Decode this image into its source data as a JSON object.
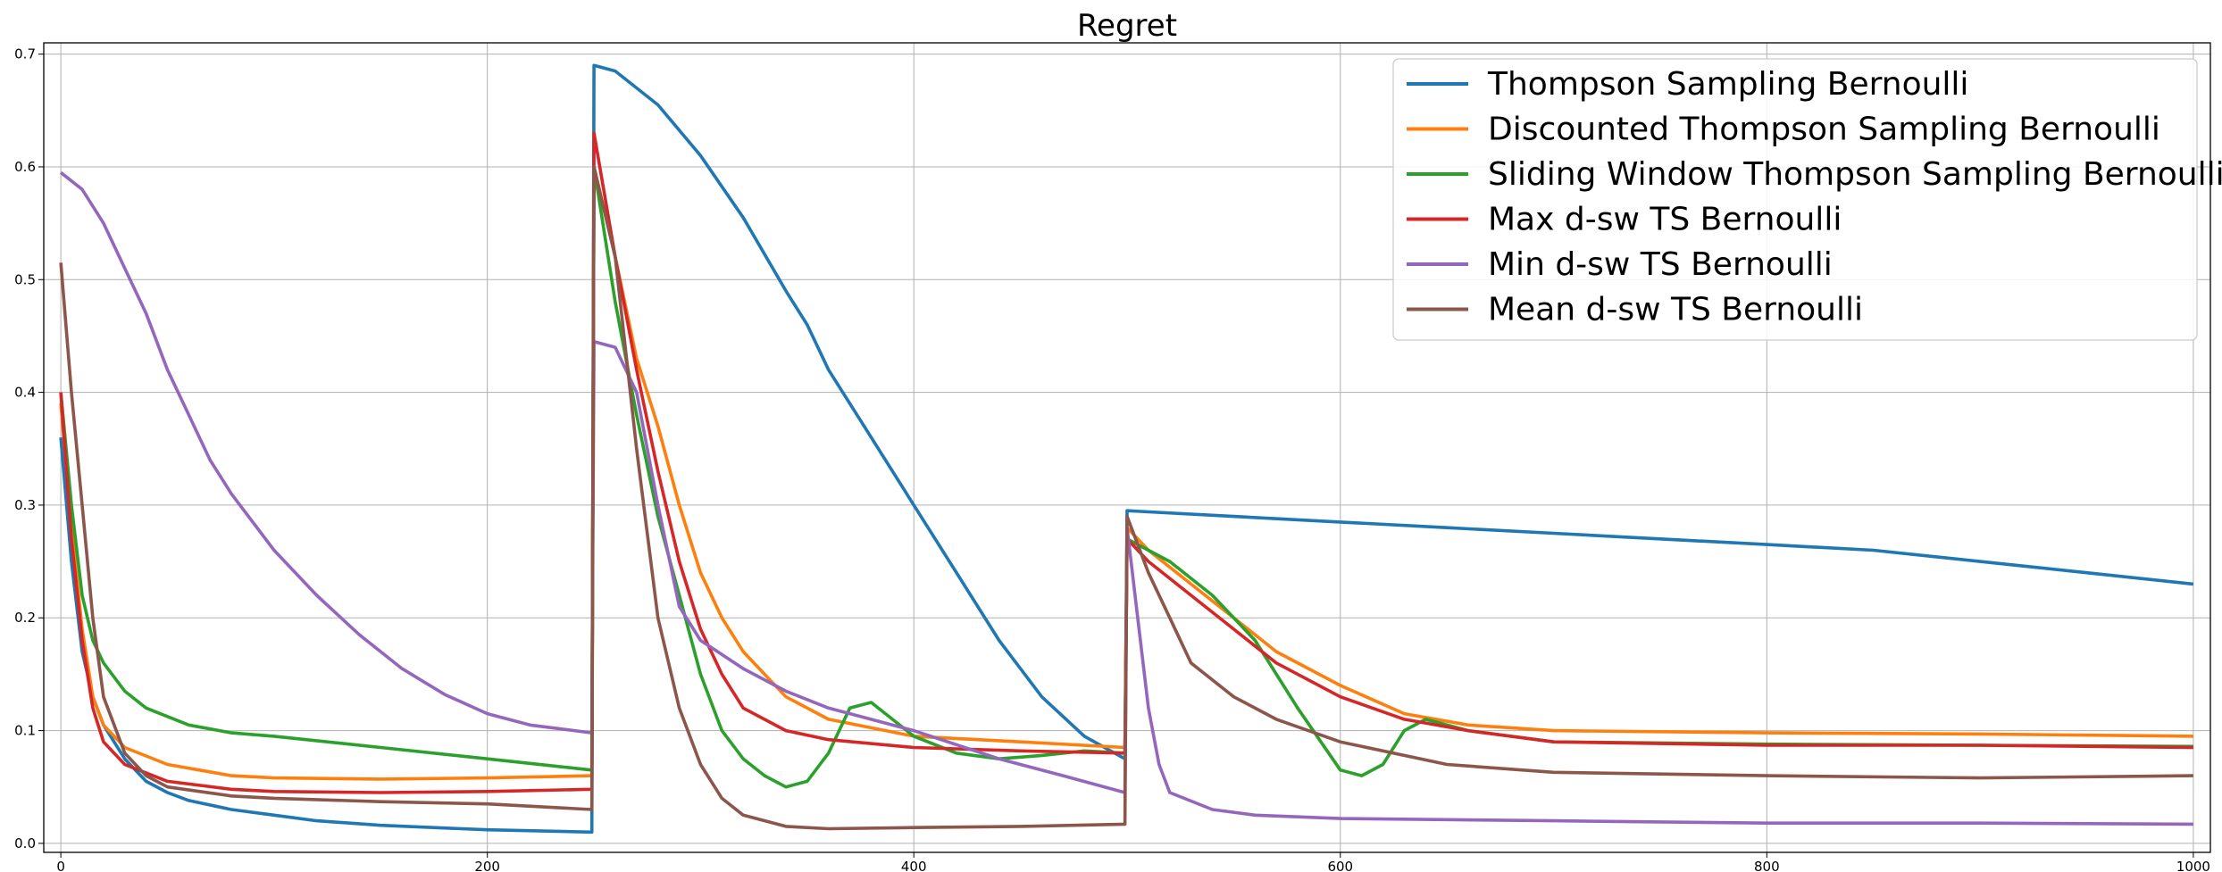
{
  "chart_data": {
    "type": "line",
    "title": "Regret",
    "xlabel": "",
    "ylabel": "",
    "xlim": [
      -8,
      1008
    ],
    "ylim": [
      -0.008,
      0.71
    ],
    "x_ticks": [
      0,
      200,
      400,
      600,
      800,
      1000
    ],
    "y_ticks": [
      0.0,
      0.1,
      0.2,
      0.3,
      0.4,
      0.5,
      0.6,
      0.7
    ],
    "x_tick_labels": [
      "0",
      "200",
      "400",
      "600",
      "800",
      "1000"
    ],
    "y_tick_labels": [
      "0.0",
      "0.1",
      "0.2",
      "0.3",
      "0.4",
      "0.5",
      "0.6",
      "0.7"
    ],
    "grid": true,
    "legend_position": "top-right",
    "series": [
      {
        "name": "Thompson Sampling Bernoulli",
        "color": "#1f77b4",
        "points": [
          [
            0,
            0.36
          ],
          [
            5,
            0.25
          ],
          [
            10,
            0.17
          ],
          [
            15,
            0.13
          ],
          [
            20,
            0.105
          ],
          [
            30,
            0.075
          ],
          [
            40,
            0.055
          ],
          [
            50,
            0.045
          ],
          [
            60,
            0.038
          ],
          [
            80,
            0.03
          ],
          [
            100,
            0.025
          ],
          [
            120,
            0.02
          ],
          [
            150,
            0.016
          ],
          [
            200,
            0.012
          ],
          [
            249,
            0.01
          ],
          [
            250,
            0.69
          ],
          [
            260,
            0.685
          ],
          [
            280,
            0.655
          ],
          [
            300,
            0.61
          ],
          [
            320,
            0.555
          ],
          [
            340,
            0.49
          ],
          [
            350,
            0.46
          ],
          [
            360,
            0.42
          ],
          [
            380,
            0.36
          ],
          [
            400,
            0.3
          ],
          [
            420,
            0.24
          ],
          [
            440,
            0.18
          ],
          [
            460,
            0.13
          ],
          [
            480,
            0.095
          ],
          [
            499,
            0.075
          ],
          [
            500,
            0.295
          ],
          [
            550,
            0.29
          ],
          [
            600,
            0.285
          ],
          [
            650,
            0.28
          ],
          [
            700,
            0.275
          ],
          [
            750,
            0.27
          ],
          [
            800,
            0.265
          ],
          [
            850,
            0.26
          ],
          [
            900,
            0.25
          ],
          [
            950,
            0.24
          ],
          [
            1000,
            0.23
          ]
        ]
      },
      {
        "name": "Discounted Thompson Sampling Bernoulli",
        "color": "#ff7f0e",
        "points": [
          [
            0,
            0.39
          ],
          [
            5,
            0.28
          ],
          [
            10,
            0.19
          ],
          [
            15,
            0.13
          ],
          [
            20,
            0.105
          ],
          [
            30,
            0.085
          ],
          [
            50,
            0.07
          ],
          [
            80,
            0.06
          ],
          [
            100,
            0.058
          ],
          [
            150,
            0.057
          ],
          [
            200,
            0.058
          ],
          [
            249,
            0.06
          ],
          [
            250,
            0.6
          ],
          [
            260,
            0.52
          ],
          [
            270,
            0.43
          ],
          [
            280,
            0.37
          ],
          [
            290,
            0.3
          ],
          [
            300,
            0.24
          ],
          [
            310,
            0.2
          ],
          [
            320,
            0.17
          ],
          [
            340,
            0.13
          ],
          [
            360,
            0.11
          ],
          [
            400,
            0.095
          ],
          [
            450,
            0.09
          ],
          [
            499,
            0.085
          ],
          [
            500,
            0.28
          ],
          [
            510,
            0.26
          ],
          [
            530,
            0.23
          ],
          [
            550,
            0.2
          ],
          [
            570,
            0.17
          ],
          [
            600,
            0.14
          ],
          [
            630,
            0.115
          ],
          [
            660,
            0.105
          ],
          [
            700,
            0.1
          ],
          [
            800,
            0.098
          ],
          [
            900,
            0.097
          ],
          [
            1000,
            0.095
          ]
        ]
      },
      {
        "name": "Sliding Window Thompson Sampling Bernoulli",
        "color": "#2ca02c",
        "points": [
          [
            0,
            0.4
          ],
          [
            5,
            0.3
          ],
          [
            10,
            0.22
          ],
          [
            15,
            0.18
          ],
          [
            20,
            0.16
          ],
          [
            30,
            0.135
          ],
          [
            40,
            0.12
          ],
          [
            60,
            0.105
          ],
          [
            80,
            0.098
          ],
          [
            100,
            0.095
          ],
          [
            150,
            0.085
          ],
          [
            200,
            0.075
          ],
          [
            249,
            0.065
          ],
          [
            250,
            0.6
          ],
          [
            260,
            0.48
          ],
          [
            270,
            0.38
          ],
          [
            280,
            0.29
          ],
          [
            290,
            0.22
          ],
          [
            300,
            0.15
          ],
          [
            310,
            0.1
          ],
          [
            320,
            0.075
          ],
          [
            330,
            0.06
          ],
          [
            340,
            0.05
          ],
          [
            350,
            0.055
          ],
          [
            360,
            0.08
          ],
          [
            370,
            0.12
          ],
          [
            380,
            0.125
          ],
          [
            390,
            0.11
          ],
          [
            400,
            0.095
          ],
          [
            420,
            0.08
          ],
          [
            440,
            0.075
          ],
          [
            460,
            0.078
          ],
          [
            480,
            0.082
          ],
          [
            499,
            0.08
          ],
          [
            500,
            0.27
          ],
          [
            520,
            0.25
          ],
          [
            540,
            0.22
          ],
          [
            560,
            0.18
          ],
          [
            580,
            0.12
          ],
          [
            600,
            0.065
          ],
          [
            610,
            0.06
          ],
          [
            620,
            0.07
          ],
          [
            630,
            0.1
          ],
          [
            640,
            0.11
          ],
          [
            660,
            0.1
          ],
          [
            700,
            0.09
          ],
          [
            800,
            0.088
          ],
          [
            900,
            0.087
          ],
          [
            1000,
            0.086
          ]
        ]
      },
      {
        "name": "Max d-sw TS Bernoulli",
        "color": "#d62728",
        "points": [
          [
            0,
            0.4
          ],
          [
            5,
            0.27
          ],
          [
            10,
            0.18
          ],
          [
            15,
            0.12
          ],
          [
            20,
            0.09
          ],
          [
            30,
            0.07
          ],
          [
            50,
            0.055
          ],
          [
            80,
            0.048
          ],
          [
            100,
            0.046
          ],
          [
            150,
            0.045
          ],
          [
            200,
            0.046
          ],
          [
            249,
            0.048
          ],
          [
            250,
            0.63
          ],
          [
            260,
            0.52
          ],
          [
            270,
            0.42
          ],
          [
            280,
            0.33
          ],
          [
            290,
            0.25
          ],
          [
            300,
            0.19
          ],
          [
            310,
            0.15
          ],
          [
            320,
            0.12
          ],
          [
            340,
            0.1
          ],
          [
            360,
            0.092
          ],
          [
            400,
            0.085
          ],
          [
            450,
            0.082
          ],
          [
            499,
            0.08
          ],
          [
            500,
            0.27
          ],
          [
            510,
            0.25
          ],
          [
            530,
            0.22
          ],
          [
            550,
            0.19
          ],
          [
            570,
            0.16
          ],
          [
            600,
            0.13
          ],
          [
            630,
            0.11
          ],
          [
            660,
            0.1
          ],
          [
            700,
            0.09
          ],
          [
            800,
            0.087
          ],
          [
            900,
            0.087
          ],
          [
            1000,
            0.085
          ]
        ]
      },
      {
        "name": "Min d-sw TS Bernoulli",
        "color": "#9467bd",
        "points": [
          [
            0,
            0.595
          ],
          [
            10,
            0.58
          ],
          [
            20,
            0.55
          ],
          [
            30,
            0.51
          ],
          [
            40,
            0.47
          ],
          [
            50,
            0.42
          ],
          [
            60,
            0.38
          ],
          [
            70,
            0.34
          ],
          [
            80,
            0.31
          ],
          [
            100,
            0.26
          ],
          [
            120,
            0.22
          ],
          [
            140,
            0.185
          ],
          [
            160,
            0.155
          ],
          [
            180,
            0.132
          ],
          [
            200,
            0.115
          ],
          [
            220,
            0.105
          ],
          [
            249,
            0.098
          ],
          [
            250,
            0.445
          ],
          [
            260,
            0.44
          ],
          [
            270,
            0.4
          ],
          [
            280,
            0.3
          ],
          [
            290,
            0.21
          ],
          [
            300,
            0.18
          ],
          [
            320,
            0.155
          ],
          [
            340,
            0.135
          ],
          [
            360,
            0.12
          ],
          [
            400,
            0.1
          ],
          [
            440,
            0.075
          ],
          [
            470,
            0.06
          ],
          [
            499,
            0.045
          ],
          [
            500,
            0.28
          ],
          [
            505,
            0.2
          ],
          [
            510,
            0.12
          ],
          [
            515,
            0.07
          ],
          [
            520,
            0.045
          ],
          [
            540,
            0.03
          ],
          [
            560,
            0.025
          ],
          [
            600,
            0.022
          ],
          [
            700,
            0.02
          ],
          [
            800,
            0.018
          ],
          [
            900,
            0.018
          ],
          [
            1000,
            0.017
          ]
        ]
      },
      {
        "name": "Mean d-sw TS Bernoulli",
        "color": "#8c564b",
        "points": [
          [
            0,
            0.515
          ],
          [
            5,
            0.4
          ],
          [
            10,
            0.3
          ],
          [
            15,
            0.2
          ],
          [
            20,
            0.13
          ],
          [
            30,
            0.08
          ],
          [
            40,
            0.06
          ],
          [
            50,
            0.05
          ],
          [
            80,
            0.042
          ],
          [
            100,
            0.04
          ],
          [
            150,
            0.037
          ],
          [
            200,
            0.035
          ],
          [
            249,
            0.03
          ],
          [
            250,
            0.6
          ],
          [
            260,
            0.52
          ],
          [
            270,
            0.35
          ],
          [
            280,
            0.2
          ],
          [
            290,
            0.12
          ],
          [
            300,
            0.07
          ],
          [
            310,
            0.04
          ],
          [
            320,
            0.025
          ],
          [
            340,
            0.015
          ],
          [
            360,
            0.013
          ],
          [
            400,
            0.014
          ],
          [
            450,
            0.015
          ],
          [
            499,
            0.017
          ],
          [
            500,
            0.29
          ],
          [
            510,
            0.24
          ],
          [
            520,
            0.2
          ],
          [
            530,
            0.16
          ],
          [
            550,
            0.13
          ],
          [
            570,
            0.11
          ],
          [
            600,
            0.09
          ],
          [
            650,
            0.07
          ],
          [
            700,
            0.063
          ],
          [
            800,
            0.06
          ],
          [
            900,
            0.058
          ],
          [
            1000,
            0.06
          ]
        ]
      }
    ]
  }
}
